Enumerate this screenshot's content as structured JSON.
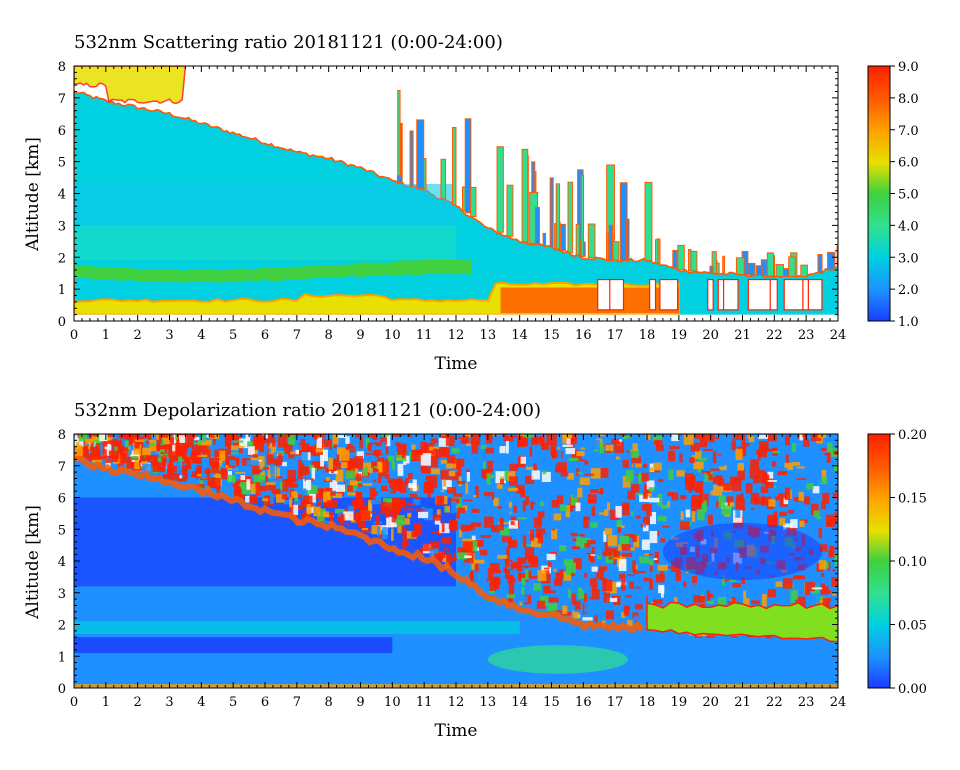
{
  "chart_data": [
    {
      "type": "heatmap",
      "title": "532nm Scattering ratio  20181121 (0:00-24:00)",
      "xlabel": "Time",
      "ylabel": "Altitude [km]",
      "xlim": [
        0,
        24
      ],
      "ylim": [
        0,
        8
      ],
      "x_ticks": [
        "0",
        "1",
        "2",
        "3",
        "4",
        "5",
        "6",
        "7",
        "8",
        "9",
        "10",
        "11",
        "12",
        "13",
        "14",
        "15",
        "16",
        "17",
        "18",
        "19",
        "20",
        "21",
        "22",
        "23",
        "24"
      ],
      "y_ticks": [
        "0",
        "1",
        "2",
        "3",
        "4",
        "5",
        "6",
        "7",
        "8"
      ],
      "colorbar": {
        "min": 1.0,
        "max": 9.0,
        "ticks": [
          "1.0",
          "2.0",
          "3.0",
          "4.0",
          "5.0",
          "6.0",
          "7.0",
          "8.0",
          "9.0"
        ]
      },
      "cloud_top_km": [
        [
          0,
          7.2
        ],
        [
          1,
          6.9
        ],
        [
          2,
          6.7
        ],
        [
          3,
          6.5
        ],
        [
          4,
          6.2
        ],
        [
          5,
          5.9
        ],
        [
          6,
          5.6
        ],
        [
          7,
          5.3
        ],
        [
          8,
          5.1
        ],
        [
          9,
          4.8
        ],
        [
          10,
          4.4
        ],
        [
          11,
          4.1
        ],
        [
          12,
          3.6
        ],
        [
          13,
          2.9
        ],
        [
          14,
          2.5
        ],
        [
          15,
          2.3
        ],
        [
          16,
          2.0
        ],
        [
          17,
          1.9
        ],
        [
          18,
          1.9
        ],
        [
          19,
          1.6
        ],
        [
          20,
          1.5
        ],
        [
          21,
          1.45
        ],
        [
          22,
          1.4
        ],
        [
          23,
          1.4
        ],
        [
          24,
          1.7
        ]
      ],
      "description_values": {
        "lower_layer_band_km": [
          1.4,
          1.7
        ],
        "surface_layer_km": [
          0.2,
          0.7
        ]
      },
      "colors": [
        "#1a3cff",
        "#1e90ff",
        "#00d0e0",
        "#30e090",
        "#40d040",
        "#e8e000",
        "#ffa000",
        "#ff5a00",
        "#ff2000"
      ]
    },
    {
      "type": "heatmap",
      "title": "532nm Depolarization ratio  20181121 (0:00-24:00)",
      "xlabel": "Time",
      "ylabel": "Altitude [km]",
      "xlim": [
        0,
        24
      ],
      "ylim": [
        0,
        8
      ],
      "x_ticks": [
        "0",
        "1",
        "2",
        "3",
        "4",
        "5",
        "6",
        "7",
        "8",
        "9",
        "10",
        "11",
        "12",
        "13",
        "14",
        "15",
        "16",
        "17",
        "18",
        "19",
        "20",
        "21",
        "22",
        "23",
        "24"
      ],
      "y_ticks": [
        "0",
        "1",
        "2",
        "3",
        "4",
        "5",
        "6",
        "7",
        "8"
      ],
      "colorbar": {
        "min": 0.0,
        "max": 0.2,
        "ticks": [
          "0.00",
          "0.05",
          "0.10",
          "0.15",
          "0.20"
        ]
      },
      "colors": [
        "#1a3cff",
        "#1e90ff",
        "#00d0e0",
        "#30e090",
        "#40d040",
        "#e8e000",
        "#ffa000",
        "#ff5a00",
        "#ff2000"
      ]
    }
  ]
}
